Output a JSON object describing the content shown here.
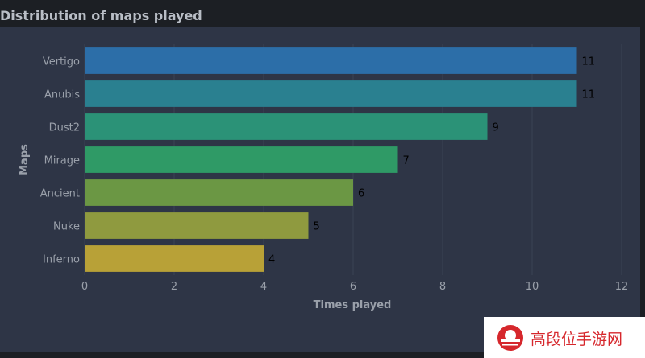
{
  "chart_data": {
    "type": "bar",
    "orientation": "horizontal",
    "title": "Distribution of maps played",
    "xlabel": "Times played",
    "ylabel": "Maps",
    "categories": [
      "Vertigo",
      "Anubis",
      "Dust2",
      "Mirage",
      "Ancient",
      "Nuke",
      "Inferno"
    ],
    "values": [
      11,
      11,
      9,
      7,
      6,
      5,
      4
    ],
    "data_labels": [
      "11",
      "11",
      "9",
      "7",
      "6",
      "5",
      "4"
    ],
    "colors": [
      "#2c6ea8",
      "#2a8090",
      "#2b9277",
      "#2f9a66",
      "#6b9744",
      "#8f9a3f",
      "#b8a137"
    ],
    "xlim": [
      0,
      12
    ],
    "xticks": [
      0,
      2,
      4,
      6,
      8,
      10,
      12
    ],
    "xtick_labels": [
      "0",
      "2",
      "4",
      "6",
      "8",
      "10",
      "12"
    ],
    "grid": true,
    "background": "#2e3546",
    "gridline_color": "#3a4254"
  },
  "watermark": {
    "text": "高段位手游网",
    "color": "#d6272c"
  }
}
